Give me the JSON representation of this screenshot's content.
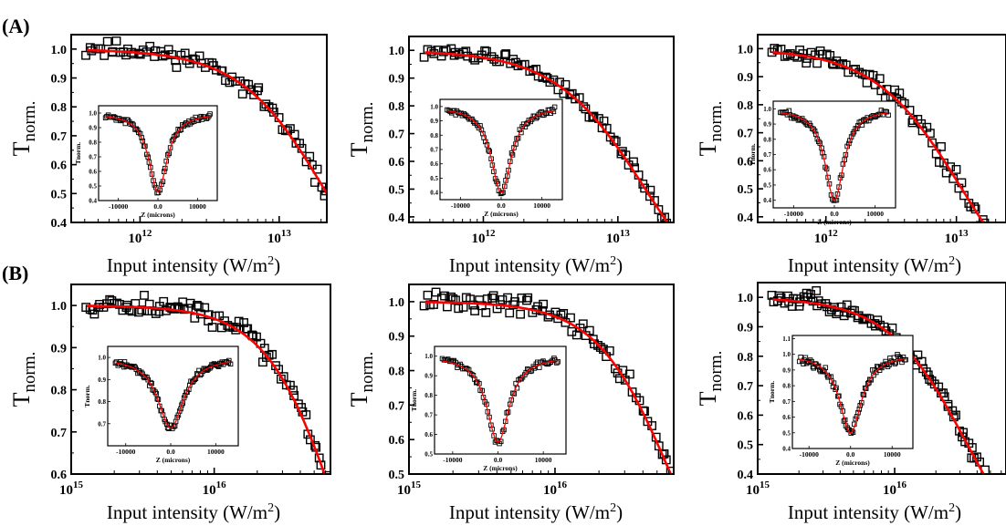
{
  "figure": {
    "row_labels": [
      "(A)",
      "(B)"
    ],
    "colors": {
      "fit": "#ff0000",
      "marker": "#000000",
      "axis": "#000000",
      "background": "#ffffff"
    }
  },
  "chart_data": [
    {
      "type": "scatter",
      "row": "(A)",
      "column": 1,
      "xscale": "log",
      "xlim": [
        320000000000.0,
        22000000000000.0
      ],
      "ylim": [
        0.4,
        1.05
      ],
      "xticks": [
        {
          "v": 1000000000000.0,
          "b": "10",
          "e": "12"
        },
        {
          "v": 10000000000000.0,
          "b": "10",
          "e": "13"
        }
      ],
      "yticks": [
        0.4,
        0.5,
        0.6,
        0.7,
        0.8,
        0.9,
        1.0
      ],
      "ylabel": {
        "main": "T",
        "sub": "norm."
      },
      "xlabel": {
        "main": "Input intensity (W/m",
        "sup": "2",
        "tail": ")"
      },
      "fit": {
        "isat": 22000000000000.0,
        "n": 1.4
      },
      "scatter": {
        "seed": 11,
        "n": 80,
        "noise": 0.025
      },
      "inset": {
        "xlim": [
          -15000,
          15000
        ],
        "ylim": [
          0.4,
          1.05
        ],
        "xticks": [
          -10000,
          0,
          10000
        ],
        "yticks": [
          0.4,
          0.5,
          0.6,
          0.7,
          0.8,
          0.9,
          1.0
        ],
        "xlabel": "Z (microns)",
        "ylabel": "Tnorm.",
        "dip": {
          "depth": 0.54,
          "width": 2800
        },
        "scatter": {
          "seed": 31,
          "n": 80,
          "noise": 0.015
        }
      }
    },
    {
      "type": "scatter",
      "row": "(A)",
      "column": 2,
      "xscale": "log",
      "xlim": [
        280000000000.0,
        26000000000000.0
      ],
      "ylim": [
        0.38,
        1.05
      ],
      "xticks": [
        {
          "v": 1000000000000.0,
          "b": "10",
          "e": "12"
        },
        {
          "v": 10000000000000.0,
          "b": "10",
          "e": "13"
        }
      ],
      "yticks": [
        0.4,
        0.5,
        0.6,
        0.7,
        0.8,
        0.9,
        1.0
      ],
      "ylabel": {
        "main": "T",
        "sub": "norm."
      },
      "xlabel": {
        "main": "Input intensity (W/m",
        "sup": "2",
        "tail": ")"
      },
      "fit": {
        "isat": 16000000000000.0,
        "n": 1.3
      },
      "scatter": {
        "seed": 12,
        "n": 80,
        "noise": 0.02
      },
      "inset": {
        "xlim": [
          -15000,
          15000
        ],
        "ylim": [
          0.35,
          1.05
        ],
        "xticks": [
          -10000,
          0,
          10000
        ],
        "yticks": [
          0.4,
          0.5,
          0.6,
          0.7,
          0.8,
          0.9,
          1.0
        ],
        "xlabel": "Z (microns)",
        "ylabel": "",
        "dip": {
          "depth": 0.6,
          "width": 3000
        },
        "scatter": {
          "seed": 32,
          "n": 80,
          "noise": 0.02
        }
      }
    },
    {
      "type": "scatter",
      "row": "(A)",
      "column": 3,
      "xscale": "log",
      "xlim": [
        300000000000.0,
        24000000000000.0
      ],
      "ylim": [
        0.38,
        1.05
      ],
      "xticks": [
        {
          "v": 1000000000000.0,
          "b": "10",
          "e": "12"
        },
        {
          "v": 10000000000000.0,
          "b": "10",
          "e": "13"
        }
      ],
      "yticks": [
        0.4,
        0.5,
        0.6,
        0.7,
        0.8,
        0.9,
        1.0
      ],
      "ylabel": {
        "main": "T",
        "sub": "norm."
      },
      "xlabel": {
        "main": "Input intensity (W/m",
        "sup": "2",
        "tail": ")"
      },
      "fit": {
        "isat": 11000000000000.0,
        "n": 1.3
      },
      "scatter": {
        "seed": 13,
        "n": 80,
        "noise": 0.025
      },
      "inset": {
        "xlim": [
          -15000,
          15000
        ],
        "ylim": [
          0.35,
          1.05
        ],
        "xticks": [
          -10000,
          0,
          10000
        ],
        "yticks": [
          0.4,
          0.5,
          0.6,
          0.7,
          0.8,
          0.9,
          1.0
        ],
        "xlabel": "Z (microns)",
        "ylabel": "Tnorm.",
        "dip": {
          "depth": 0.6,
          "width": 2800
        },
        "scatter": {
          "seed": 33,
          "n": 80,
          "noise": 0.02
        }
      }
    },
    {
      "type": "scatter",
      "row": "(B)",
      "column": 1,
      "xscale": "log",
      "xlim": [
        1000000000000000.0,
        6.5e+16
      ],
      "ylim": [
        0.6,
        1.05
      ],
      "xticks": [
        {
          "v": 1000000000000000.0,
          "b": "10",
          "e": "15"
        },
        {
          "v": 1e+16,
          "b": "10",
          "e": "16"
        }
      ],
      "yticks": [
        0.6,
        0.7,
        0.8,
        0.9,
        1.0
      ],
      "ylabel": {
        "main": "T",
        "sub": "norm."
      },
      "xlabel": {
        "main": "Input intensity (W/m",
        "sup": "2",
        "tail": ")"
      },
      "fit": {
        "isat": 7.5e+16,
        "n": 1.7
      },
      "scatter": {
        "seed": 14,
        "n": 90,
        "noise": 0.02
      },
      "inset": {
        "xlim": [
          -14000,
          15000
        ],
        "ylim": [
          0.6,
          1.05
        ],
        "xticks": [
          -10000,
          0,
          10000
        ],
        "yticks": [
          0.7,
          0.8,
          0.9,
          1.0
        ],
        "xlabel": "Z (microns)",
        "ylabel": "Tnorm.",
        "dip": {
          "depth": 0.32,
          "width": 3500
        },
        "scatter": {
          "seed": 34,
          "n": 100,
          "noise": 0.012
        }
      }
    },
    {
      "type": "scatter",
      "row": "(B)",
      "column": 2,
      "xscale": "log",
      "xlim": [
        1000000000000000.0,
        6.5e+16
      ],
      "ylim": [
        0.5,
        1.05
      ],
      "xticks": [
        {
          "v": 1000000000000000.0,
          "b": "10",
          "e": "15"
        },
        {
          "v": 1e+16,
          "b": "10",
          "e": "16"
        }
      ],
      "yticks": [
        0.5,
        0.6,
        0.7,
        0.8,
        0.9,
        1.0
      ],
      "ylabel": {
        "main": "T",
        "sub": "norm."
      },
      "xlabel": {
        "main": "Input intensity (W/m",
        "sup": "2",
        "tail": ")"
      },
      "fit": {
        "isat": 6.2e+16,
        "n": 1.7
      },
      "scatter": {
        "seed": 15,
        "n": 80,
        "noise": 0.025
      },
      "inset": {
        "xlim": [
          -14000,
          15000
        ],
        "ylim": [
          0.5,
          1.05
        ],
        "xticks": [
          -10000,
          0,
          10000
        ],
        "yticks": [
          0.5,
          0.6,
          0.7,
          0.8,
          0.9,
          1.0
        ],
        "xlabel": "Z (microns)",
        "ylabel": "Tnorm.",
        "dip": {
          "depth": 0.44,
          "width": 3000
        },
        "scatter": {
          "seed": 35,
          "n": 80,
          "noise": 0.015
        }
      }
    },
    {
      "type": "scatter",
      "row": "(B)",
      "column": 3,
      "xscale": "log",
      "xlim": [
        1000000000000000.0,
        6.5e+16
      ],
      "ylim": [
        0.4,
        1.05
      ],
      "xticks": [
        {
          "v": 1000000000000000.0,
          "b": "10",
          "e": "15"
        },
        {
          "v": 1e+16,
          "b": "10",
          "e": "16"
        }
      ],
      "yticks": [
        0.4,
        0.5,
        0.6,
        0.7,
        0.8,
        0.9,
        1.0
      ],
      "ylabel": {
        "main": "T",
        "sub": "norm."
      },
      "xlabel": {
        "main": "Input intensity (W/m",
        "sup": "2",
        "tail": ")"
      },
      "fit": {
        "isat": 3.4e+16,
        "n": 1.5
      },
      "scatter": {
        "seed": 16,
        "n": 100,
        "noise": 0.03
      },
      "inset": {
        "xlim": [
          -14000,
          15000
        ],
        "ylim": [
          0.4,
          1.12
        ],
        "xticks": [
          -10000,
          0,
          10000
        ],
        "yticks": [
          0.4,
          0.5,
          0.6,
          0.7,
          0.8,
          0.9,
          1.0,
          1.1
        ],
        "xlabel": "Z (microns)",
        "ylabel": "Tnorm.",
        "dip": {
          "depth": 0.5,
          "width": 3200
        },
        "scatter": {
          "seed": 36,
          "n": 90,
          "noise": 0.025
        }
      }
    }
  ]
}
